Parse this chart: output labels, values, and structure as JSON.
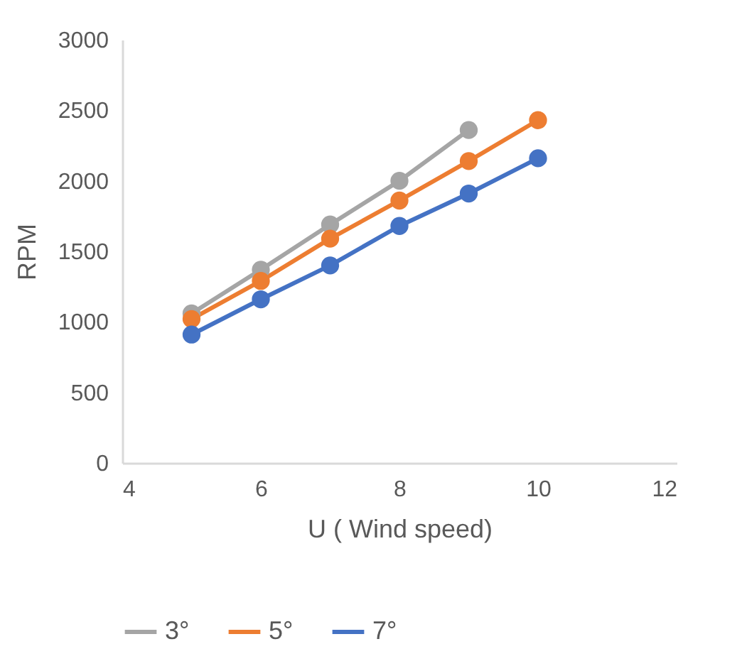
{
  "chart_data": {
    "type": "line",
    "xlabel": "U ( Wind speed)",
    "ylabel": "RPM",
    "x": [
      5,
      6,
      7,
      8,
      9,
      10
    ],
    "series": [
      {
        "name": "3°",
        "color": "#a5a5a5",
        "values": [
          1060,
          1370,
          1690,
          2000,
          2360,
          null
        ]
      },
      {
        "name": "5°",
        "color": "#ed7d31",
        "values": [
          1020,
          1290,
          1590,
          1860,
          2140,
          2430
        ]
      },
      {
        "name": "7°",
        "color": "#4472c4",
        "values": [
          910,
          1160,
          1400,
          1680,
          1910,
          2160
        ]
      }
    ],
    "xlim": [
      4,
      12
    ],
    "xticks": [
      4,
      6,
      8,
      10,
      12
    ],
    "ylim": [
      0,
      3000
    ],
    "yticks": [
      0,
      500,
      1000,
      1500,
      2000,
      2500,
      3000
    ],
    "grid": false,
    "legend": "bottom",
    "marker": "circle",
    "line_style": "solid"
  }
}
